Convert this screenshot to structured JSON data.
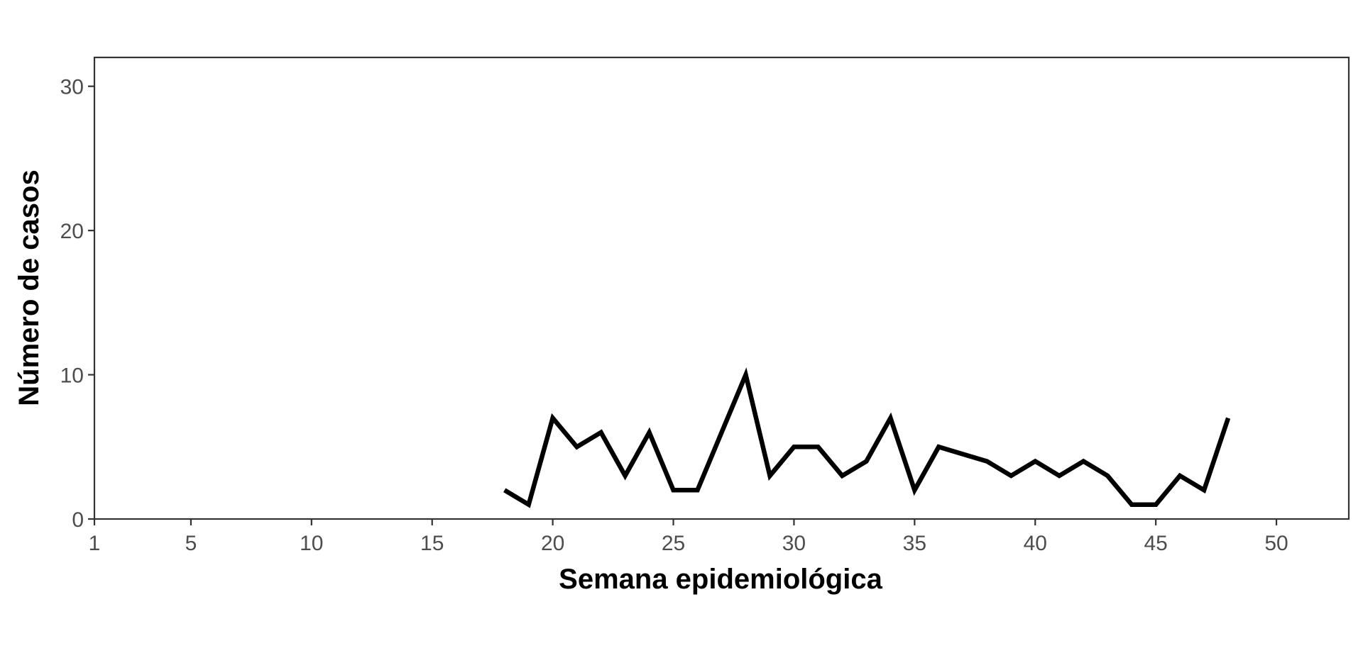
{
  "chart_data": {
    "type": "line",
    "title": "",
    "xlabel": "Semana epidemiológica",
    "ylabel": "Número de casos",
    "xlim": [
      1,
      53
    ],
    "ylim": [
      0,
      32
    ],
    "xticks": [
      1,
      5,
      10,
      15,
      20,
      25,
      30,
      35,
      40,
      45,
      50
    ],
    "yticks": [
      0,
      10,
      20,
      30
    ],
    "grid": false,
    "legend": "none",
    "series": [
      {
        "color": "#000000",
        "x": [
          18,
          19,
          20,
          21,
          22,
          23,
          24,
          25,
          26,
          27,
          28,
          29,
          30,
          31,
          32,
          33,
          34,
          35,
          36,
          37,
          38,
          39,
          40,
          41,
          42,
          43,
          44,
          45,
          46,
          47,
          48
        ],
        "y": [
          2,
          1,
          7,
          5,
          6,
          3,
          6,
          2,
          2,
          6,
          10,
          3,
          5,
          5,
          3,
          4,
          7,
          2,
          5,
          4.5,
          4,
          3,
          4,
          3,
          4,
          3,
          1,
          1,
          3,
          2,
          7
        ]
      }
    ]
  }
}
